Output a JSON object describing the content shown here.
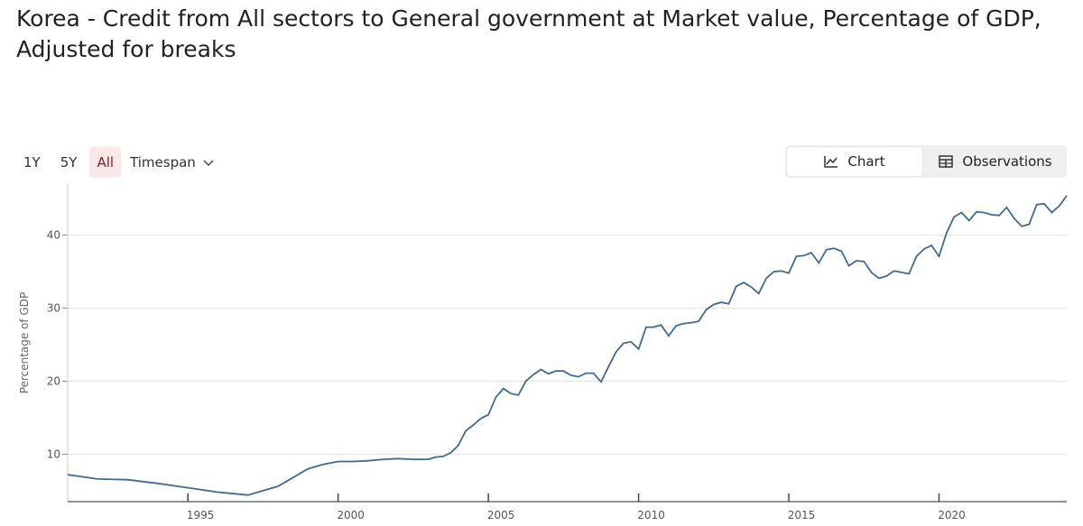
{
  "page": {
    "title": "Korea - Credit from All sectors to General government at Market value, Percentage of GDP, Adjusted for breaks"
  },
  "controls": {
    "range_buttons": [
      "1Y",
      "5Y",
      "All"
    ],
    "active_range": "All",
    "timespan_label": "Timespan",
    "chart_label": "Chart",
    "observations_label": "Observations"
  },
  "colors": {
    "line": "#3f6a96",
    "grid": "#e3e3e3",
    "active_bg": "#fbe9e9",
    "active_text": "#8b1a1a"
  },
  "chart_data": {
    "type": "line",
    "ylabel": "Percentage of GDP",
    "xlim": [
      1991.0,
      2024.25
    ],
    "ylim": [
      3.5,
      47
    ],
    "yticks": [
      10,
      20,
      30,
      40
    ],
    "xticks": [
      1995,
      2000,
      2005,
      2010,
      2015,
      2020
    ],
    "grid": true,
    "series": [
      {
        "x": [
          1991.0,
          1992.0,
          1993.0,
          1994.0,
          1995.0,
          1996.0,
          1997.0,
          1997.5,
          1998.0,
          1998.5,
          1999.0,
          1999.5,
          2000.0,
          2000.5,
          2001.0,
          2001.5,
          2002.0,
          2002.5,
          2003.0,
          2003.25,
          2003.5,
          2003.75,
          2004.0,
          2004.25,
          2004.5,
          2004.75,
          2005.0,
          2005.25,
          2005.5,
          2005.75,
          2006.0,
          2006.25,
          2006.5,
          2006.75,
          2007.0,
          2007.25,
          2007.5,
          2007.75,
          2008.0,
          2008.25,
          2008.5,
          2008.75,
          2009.0,
          2009.25,
          2009.5,
          2009.75,
          2010.0,
          2010.25,
          2010.5,
          2010.75,
          2011.0,
          2011.25,
          2011.5,
          2011.75,
          2012.0,
          2012.25,
          2012.5,
          2012.75,
          2013.0,
          2013.25,
          2013.5,
          2013.75,
          2014.0,
          2014.25,
          2014.5,
          2014.75,
          2015.0,
          2015.25,
          2015.5,
          2015.75,
          2016.0,
          2016.25,
          2016.5,
          2016.75,
          2017.0,
          2017.25,
          2017.5,
          2017.75,
          2018.0,
          2018.25,
          2018.5,
          2018.75,
          2019.0,
          2019.25,
          2019.5,
          2019.75,
          2020.0,
          2020.25,
          2020.5,
          2020.75,
          2021.0,
          2021.25,
          2021.5,
          2021.75,
          2022.0,
          2022.25,
          2022.5,
          2022.75,
          2023.0,
          2023.25,
          2023.5,
          2023.75,
          2024.0,
          2024.25
        ],
        "y": [
          7.2,
          6.6,
          6.5,
          6.0,
          5.4,
          4.8,
          4.4,
          5.0,
          5.6,
          6.8,
          8.0,
          8.6,
          9.0,
          9.0,
          9.1,
          9.3,
          9.4,
          9.3,
          9.3,
          9.6,
          9.7,
          10.2,
          11.2,
          13.2,
          14.0,
          14.9,
          15.4,
          17.8,
          19.0,
          18.3,
          18.1,
          20.0,
          20.9,
          21.6,
          21.0,
          21.4,
          21.4,
          20.8,
          20.6,
          21.1,
          21.1,
          19.9,
          22.0,
          24.0,
          25.2,
          25.4,
          24.4,
          27.4,
          27.4,
          27.7,
          26.2,
          27.6,
          27.9,
          28.0,
          28.2,
          29.8,
          30.5,
          30.8,
          30.6,
          33.0,
          33.5,
          32.9,
          32.0,
          34.1,
          35.0,
          35.1,
          34.8,
          37.1,
          37.2,
          37.6,
          36.2,
          38.0,
          38.2,
          37.8,
          35.8,
          36.5,
          36.4,
          34.9,
          34.1,
          34.4,
          35.1,
          34.9,
          34.7,
          37.1,
          38.1,
          38.6,
          37.1,
          40.3,
          42.5,
          43.1,
          42.0,
          43.2,
          43.1,
          42.8,
          42.7,
          43.8,
          42.3,
          41.2,
          41.5,
          44.2,
          44.3,
          43.1,
          44.0,
          45.4
        ]
      }
    ]
  }
}
